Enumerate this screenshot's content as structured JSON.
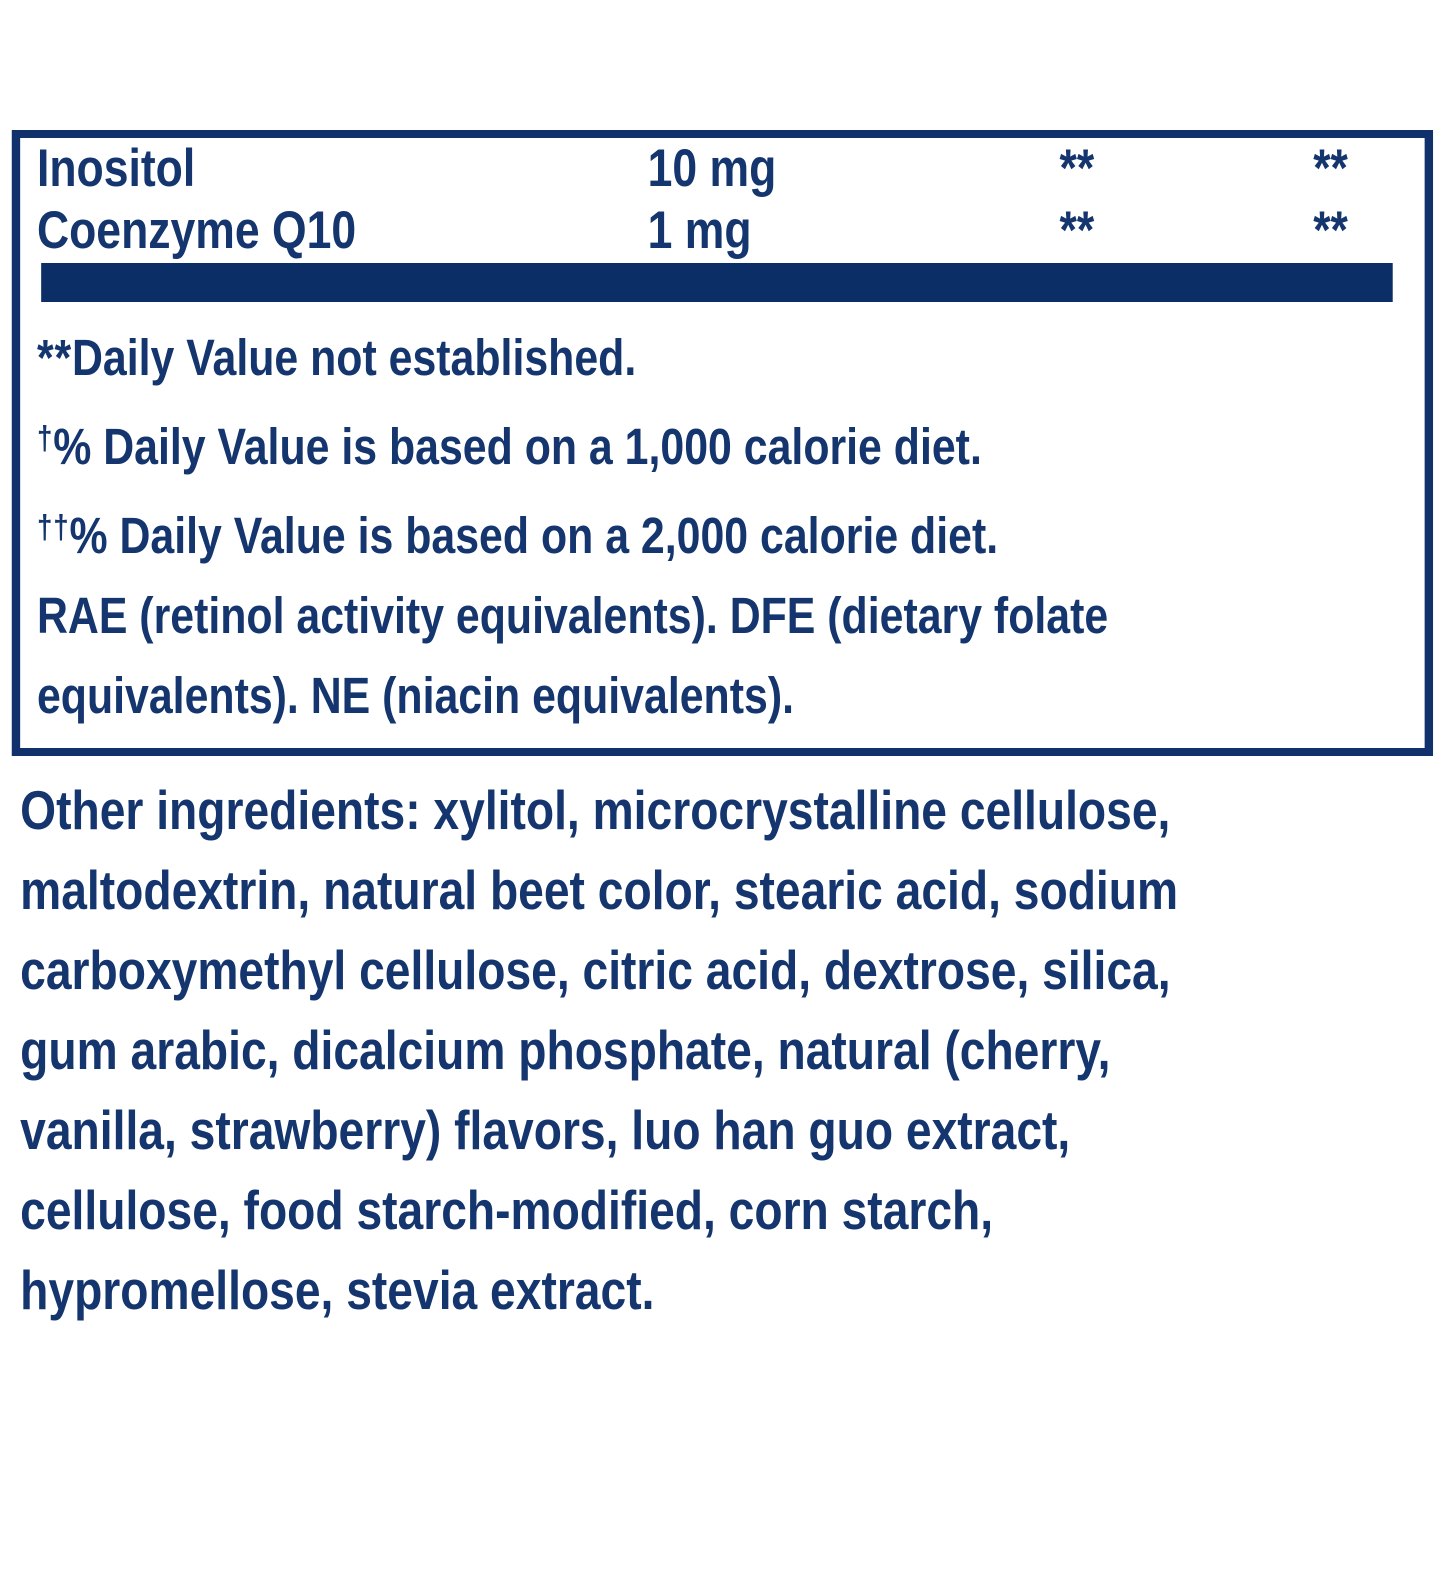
{
  "colors": {
    "navy_text": "#14356e",
    "navy_fill": "#0b2e67",
    "background": "#ffffff"
  },
  "facts_table": {
    "rows": [
      {
        "name": "Inositol",
        "amount": "10 mg",
        "daily_value_col1": "**",
        "daily_value_col2": "**"
      },
      {
        "name": "Coenzyme Q10",
        "amount": "1 mg",
        "daily_value_col1": "**",
        "daily_value_col2": "**"
      }
    ],
    "footnotes": [
      {
        "prefix": "**",
        "text": "Daily Value not established."
      },
      {
        "prefix": "†",
        "text": "% Daily Value is based on a 1,000 calorie diet."
      },
      {
        "prefix": "††",
        "text": "% Daily Value is based on a 2,000 calorie diet."
      },
      {
        "prefix": "",
        "lines": [
          "RAE (retinol activity equivalents). DFE (dietary folate",
          "equivalents). NE (niacin equivalents)."
        ]
      }
    ]
  },
  "other_ingredients": {
    "lines": [
      "Other ingredients: xylitol, microcrystalline cellulose,",
      "maltodextrin, natural beet color, stearic acid, sodium",
      "carboxymethyl cellulose, citric acid, dextrose, silica,",
      "gum arabic, dicalcium phosphate, natural (cherry,",
      "vanilla, strawberry) flavors, luo han guo extract,",
      "cellulose, food starch-modified, corn starch,",
      "hypromellose, stevia extract."
    ]
  }
}
